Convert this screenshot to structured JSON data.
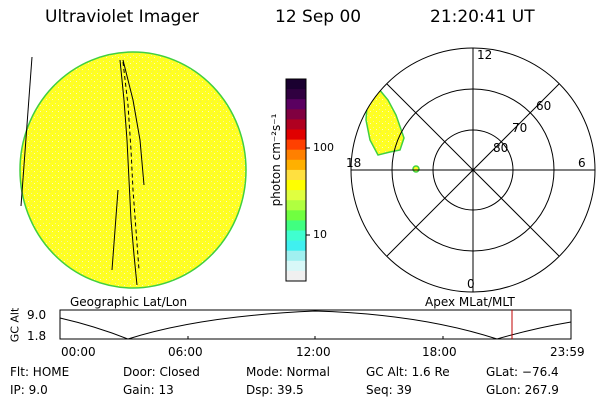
{
  "header": {
    "instrument": "Ultraviolet Imager",
    "date": "12 Sep 00",
    "time": "21:20:41 UT"
  },
  "colorbar": {
    "unit_label": "photon cm⁻²s⁻¹",
    "ticks": [
      "100",
      "10"
    ],
    "colors_top_to_bottom": [
      "#1a0030",
      "#300040",
      "#5a0060",
      "#800040",
      "#b00020",
      "#e00000",
      "#ff4000",
      "#ff8000",
      "#ffb000",
      "#ffe040",
      "#ffff00",
      "#e0ff40",
      "#b0ff40",
      "#70ff40",
      "#40ff80",
      "#40ffd0",
      "#40f0f0",
      "#a0f0f0",
      "#d8f8f8",
      "#f0f0f0"
    ]
  },
  "left_panel": {
    "label": "Geographic Lat/Lon",
    "disk_fill": "#ffff22",
    "disk_edge": "#40d040"
  },
  "polar_panel": {
    "label": "Apex MLat/MLT",
    "mlt_labels": {
      "top": "12",
      "left": "18",
      "right": "6",
      "bottom": "0"
    },
    "lat_labels": [
      "60",
      "70",
      "80"
    ]
  },
  "altitude_plot": {
    "ylabel": "GC Alt",
    "ymax_label": "9.0",
    "ymin_label": "1.8",
    "x_ticks": [
      "00:00",
      "06:00",
      "12:00",
      "18:00",
      "23:59"
    ],
    "marker_color": "#c00000"
  },
  "info": {
    "flt": "Flt: HOME",
    "ip": "IP:  9.0",
    "door": "Door: Closed",
    "gain": "Gain: 13",
    "mode": "Mode: Normal",
    "dsp": "Dsp:   39.5",
    "gcalt": "GC Alt: 1.6 Re",
    "seq": "Seq: 39",
    "glat": "GLat: −76.4",
    "glon": "GLon: 267.9"
  }
}
